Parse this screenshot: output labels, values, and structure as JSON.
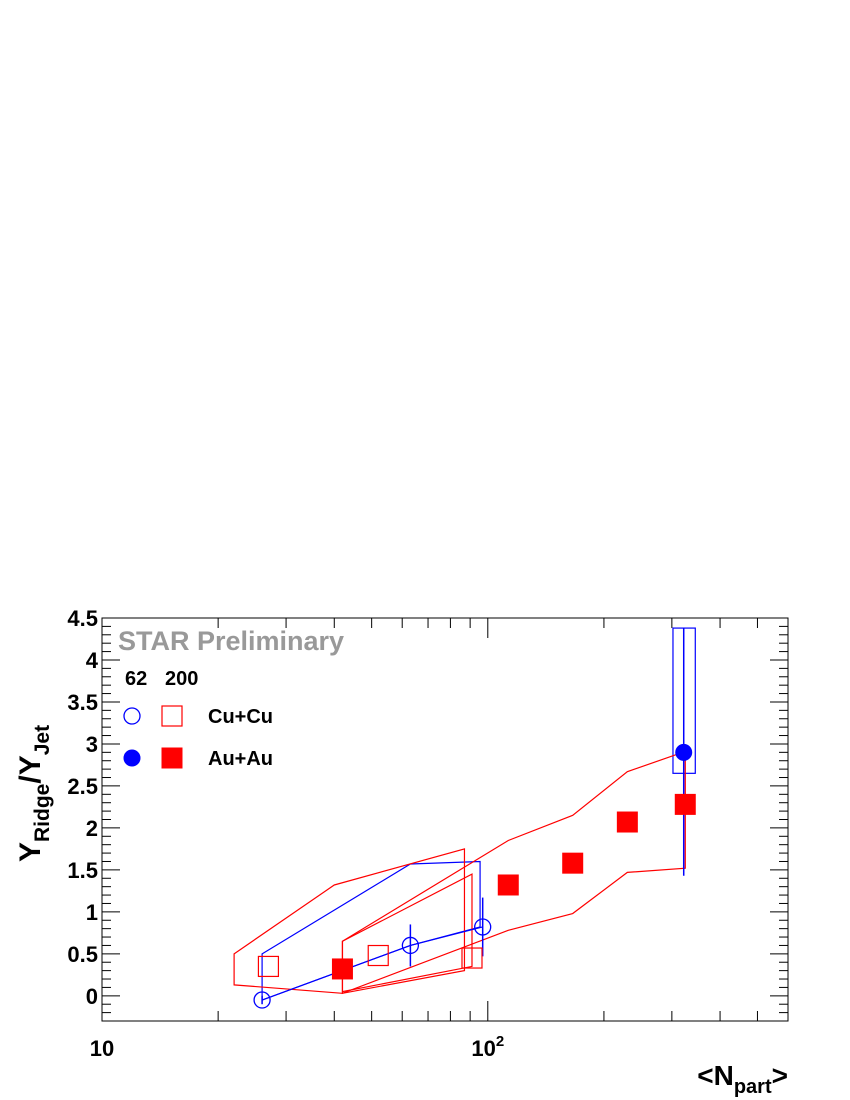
{
  "chart_data": {
    "type": "scatter",
    "title": "",
    "watermark": "STAR Preliminary",
    "xlabel": {
      "prefix": "<N",
      "sub": "part",
      "suffix": ">"
    },
    "ylabel": {
      "y1": "Y",
      "sub1": "Ridge",
      "slash": "/Y",
      "sub2": "Jet"
    },
    "x_scale": "log",
    "xlim": [
      10,
      600
    ],
    "ylim": [
      -0.3,
      4.5
    ],
    "x_tick_labels": [
      {
        "value": 10,
        "base": "10",
        "exp": ""
      },
      {
        "value": 100,
        "base": "10",
        "exp": "2"
      }
    ],
    "y_ticks": [
      0,
      0.5,
      1,
      1.5,
      2,
      2.5,
      3,
      3.5,
      4,
      4.5
    ],
    "y_tick_labels": [
      "0",
      "0.5",
      "1",
      "1.5",
      "2",
      "2.5",
      "3",
      "3.5",
      "4",
      "4.5"
    ],
    "grid": false,
    "legend": {
      "position": "top-left",
      "energy_headers": [
        "62",
        "200"
      ],
      "rows": [
        {
          "label": "Cu+Cu",
          "markers": [
            "open-circle-blue",
            "open-square-red"
          ]
        },
        {
          "label": "Au+Au",
          "markers": [
            "filled-circle-blue",
            "filled-square-red"
          ]
        }
      ]
    },
    "colors": {
      "62GeV": "#0000ff",
      "200GeV": "#ff0000",
      "watermark": "#999999"
    },
    "series": [
      {
        "name": "Cu+Cu 62",
        "marker": "open-circle",
        "color": "#0000ff",
        "x": [
          26,
          63,
          97
        ],
        "y": [
          -0.05,
          0.6,
          0.82
        ],
        "yerr": [
          0.05,
          0.25,
          0.35
        ],
        "connect": true,
        "sys_band": {
          "upper": [
            [
              26,
              0.5
            ],
            [
              63,
              1.57
            ],
            [
              95.5,
              1.6
            ]
          ],
          "lower": [
            [
              26,
              -0.05
            ],
            [
              63,
              0.6
            ],
            [
              95.5,
              0.82
            ]
          ],
          "closed": true
        }
      },
      {
        "name": "Cu+Cu 200",
        "marker": "open-square",
        "color": "#ff0000",
        "x": [
          27,
          52,
          91
        ],
        "y": [
          0.35,
          0.48,
          0.45
        ],
        "sys_band": [
          {
            "upper": [
              [
                22,
                0.5
              ],
              [
                40,
                1.32
              ],
              [
                87,
                1.75
              ]
            ],
            "lower": [
              [
                22,
                0.13
              ],
              [
                42,
                0.03
              ],
              [
                87,
                0.3
              ]
            ]
          },
          {
            "upper": [
              [
                42,
                0.65
              ],
              [
                91,
                1.45
              ]
            ],
            "lower": [
              [
                42,
                0.05
              ],
              [
                91,
                0.35
              ]
            ]
          }
        ]
      },
      {
        "name": "Au+Au 62",
        "marker": "filled-circle",
        "color": "#0000ff",
        "x": [
          322
        ],
        "y": [
          2.9
        ],
        "yerr_low": [
          1.47
        ],
        "yerr_high": [
          1.48
        ],
        "sys_box": {
          "x_low": 302,
          "x_high": 345,
          "y_low": 2.65,
          "y_high": 4.38
        }
      },
      {
        "name": "Au+Au 200",
        "marker": "filled-square",
        "color": "#ff0000",
        "x": [
          42,
          113,
          166,
          230,
          325
        ],
        "y": [
          0.32,
          1.32,
          1.58,
          2.07,
          2.28
        ],
        "sys_band": {
          "upper": [
            [
              42,
              0.65
            ],
            [
              113,
              1.85
            ],
            [
              166,
              2.15
            ],
            [
              230,
              2.67
            ],
            [
              325,
              2.91
            ]
          ],
          "lower": [
            [
              42,
              0.03
            ],
            [
              113,
              0.78
            ],
            [
              166,
              0.98
            ],
            [
              230,
              1.47
            ],
            [
              325,
              1.52
            ]
          ]
        }
      }
    ]
  }
}
